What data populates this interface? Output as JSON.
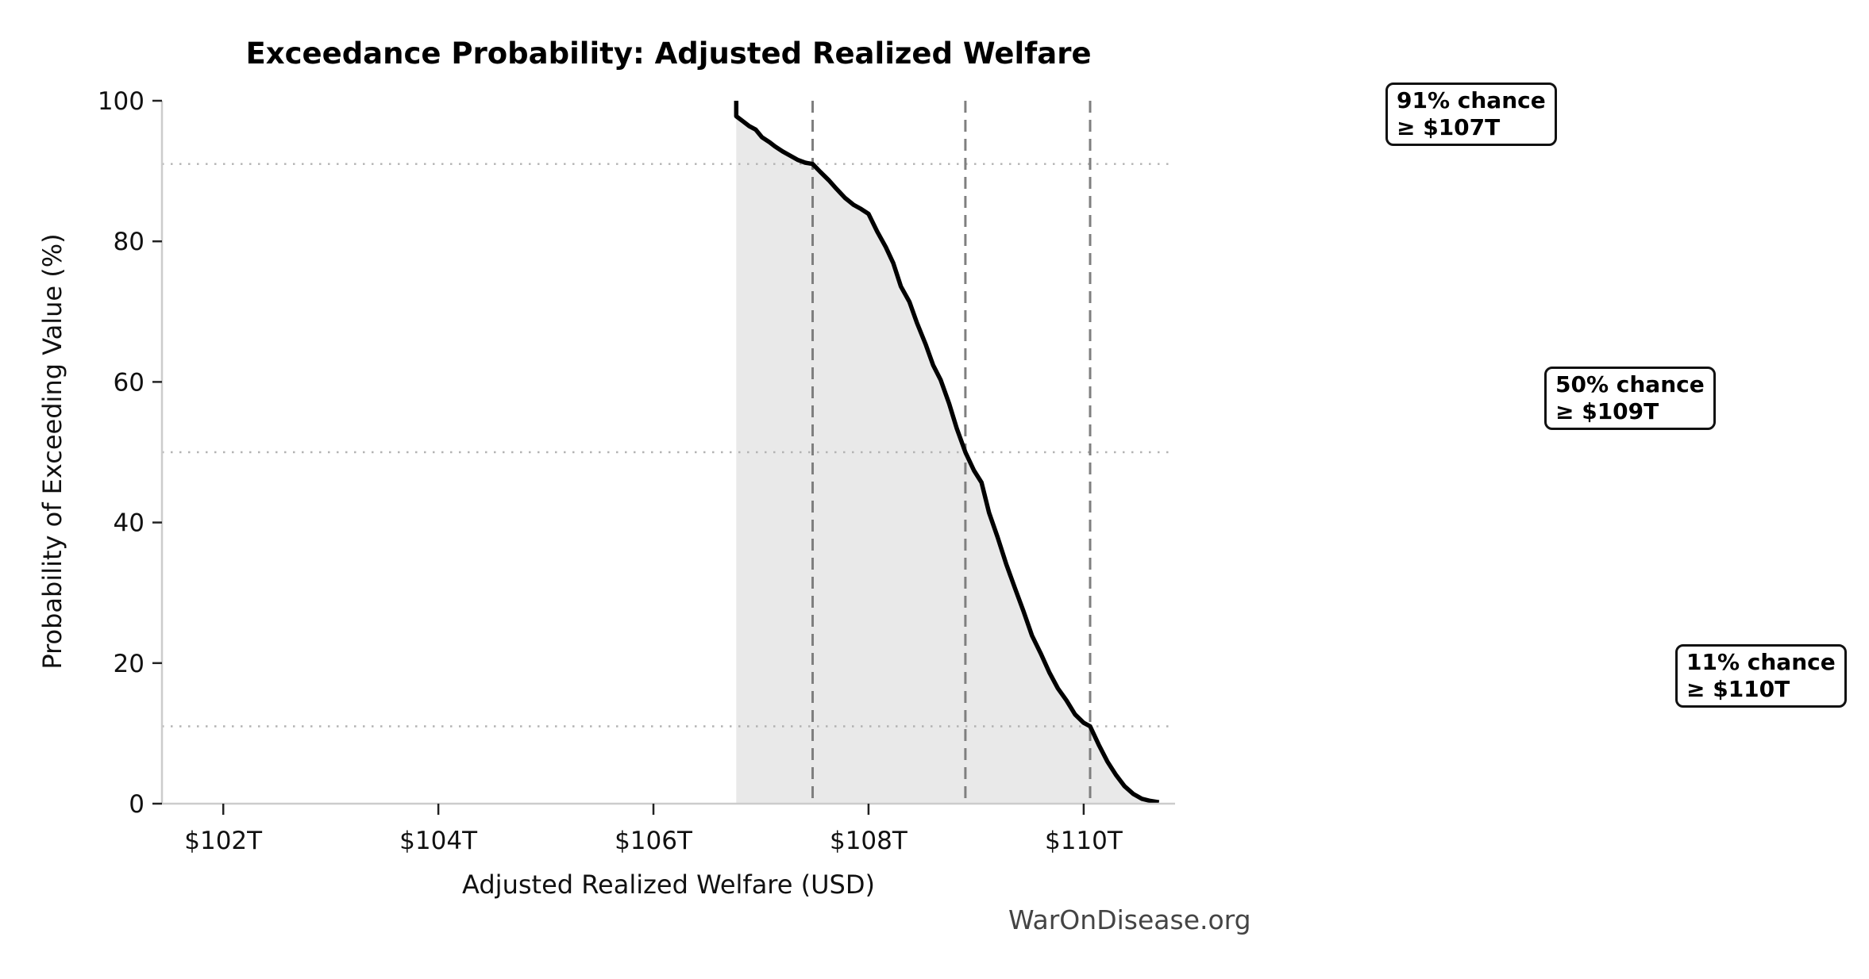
{
  "figure": {
    "title": "Exceedance Probability: Adjusted Realized Welfare",
    "watermark": "WarOnDisease.org"
  },
  "chart_data": {
    "type": "line",
    "subtype": "exceedance-probability-survival-curve",
    "title": "Exceedance Probability: Adjusted Realized Welfare",
    "xlabel": "Adjusted Realized Welfare (USD)",
    "ylabel": "Probability of Exceeding Value (%)",
    "x_unit": "trillions of USD",
    "xlim": [
      101.43,
      110.85
    ],
    "ylim": [
      0,
      100
    ],
    "grid": "off",
    "legend_position": "none",
    "area_fill_under_curve": true,
    "x_ticks": [
      {
        "value": 102,
        "label": "$102T"
      },
      {
        "value": 104,
        "label": "$104T"
      },
      {
        "value": 106,
        "label": "$106T"
      },
      {
        "value": 108,
        "label": "$108T"
      },
      {
        "value": 110,
        "label": "$110T"
      }
    ],
    "y_ticks": [
      {
        "value": 0,
        "label": "0"
      },
      {
        "value": 20,
        "label": "20"
      },
      {
        "value": 40,
        "label": "40"
      },
      {
        "value": 60,
        "label": "60"
      },
      {
        "value": 80,
        "label": "80"
      },
      {
        "value": 100,
        "label": "100"
      }
    ],
    "series": [
      {
        "name": "Exceedance probability",
        "points": [
          [
            106.77,
            100.0
          ],
          [
            106.77,
            97.8
          ],
          [
            106.83,
            97.1
          ],
          [
            106.89,
            96.4
          ],
          [
            106.95,
            95.9
          ],
          [
            107.01,
            94.8
          ],
          [
            107.08,
            94.1
          ],
          [
            107.13,
            93.5
          ],
          [
            107.2,
            92.8
          ],
          [
            107.27,
            92.2
          ],
          [
            107.34,
            91.6
          ],
          [
            107.41,
            91.2
          ],
          [
            107.48,
            91.0
          ],
          [
            107.55,
            89.9
          ],
          [
            107.63,
            88.7
          ],
          [
            107.7,
            87.5
          ],
          [
            107.78,
            86.2
          ],
          [
            107.86,
            85.2
          ],
          [
            107.93,
            84.6
          ],
          [
            108.0,
            83.9
          ],
          [
            108.08,
            81.4
          ],
          [
            108.16,
            79.2
          ],
          [
            108.23,
            76.9
          ],
          [
            108.3,
            73.6
          ],
          [
            108.38,
            71.4
          ],
          [
            108.45,
            68.4
          ],
          [
            108.53,
            65.4
          ],
          [
            108.6,
            62.4
          ],
          [
            108.67,
            60.3
          ],
          [
            108.75,
            56.9
          ],
          [
            108.82,
            53.4
          ],
          [
            108.9,
            50.0
          ],
          [
            108.98,
            47.4
          ],
          [
            109.05,
            45.7
          ],
          [
            109.12,
            41.4
          ],
          [
            109.2,
            37.9
          ],
          [
            109.28,
            34.1
          ],
          [
            109.36,
            30.7
          ],
          [
            109.44,
            27.4
          ],
          [
            109.52,
            23.9
          ],
          [
            109.6,
            21.4
          ],
          [
            109.68,
            18.7
          ],
          [
            109.76,
            16.4
          ],
          [
            109.84,
            14.7
          ],
          [
            109.92,
            12.7
          ],
          [
            110.0,
            11.5
          ],
          [
            110.06,
            11.0
          ],
          [
            110.14,
            8.4
          ],
          [
            110.22,
            6.0
          ],
          [
            110.3,
            4.1
          ],
          [
            110.38,
            2.5
          ],
          [
            110.46,
            1.4
          ],
          [
            110.54,
            0.7
          ],
          [
            110.62,
            0.4
          ],
          [
            110.7,
            0.2
          ]
        ]
      }
    ],
    "reference_lines": {
      "horizontal_dotted_probabilities": [
        91,
        50,
        11
      ],
      "vertical_dashed_values": [
        107.48,
        108.9,
        110.06
      ]
    },
    "annotations": [
      {
        "line1": "91% chance",
        "line2": "≥ $107T",
        "probability_percent": 91,
        "threshold_label": "$107T"
      },
      {
        "line1": "50% chance",
        "line2": "≥ $109T",
        "probability_percent": 50,
        "threshold_label": "$109T"
      },
      {
        "line1": "11% chance",
        "line2": "≥ $110T",
        "probability_percent": 11,
        "threshold_label": "$110T"
      }
    ]
  },
  "colors": {
    "curve": "#000000",
    "area_fill": "#e9e9e9",
    "dashed_line": "#7f7f7f",
    "dotted_line": "#b3b3b3",
    "spine": "#cccccc",
    "tick_mark": "#222222",
    "tick_label": "#111111",
    "watermark": "#444444",
    "annotation_border": "#111111",
    "background": "#ffffff"
  }
}
